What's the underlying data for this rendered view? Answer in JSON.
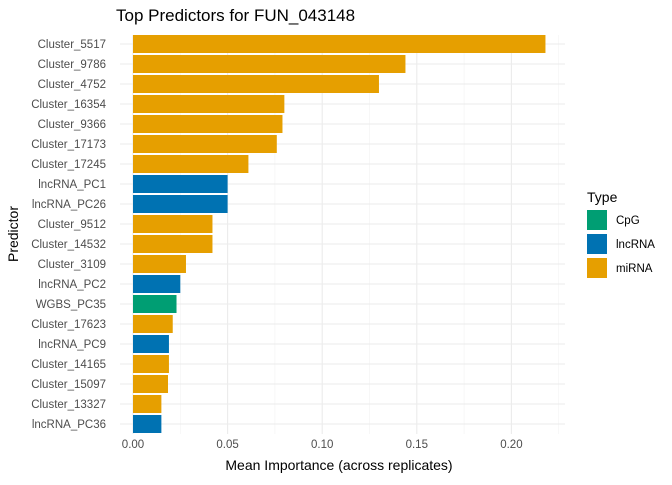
{
  "chart_data": {
    "type": "bar",
    "orientation": "horizontal",
    "title": "Top Predictors for FUN_043148",
    "xlabel": "Mean Importance (across replicates)",
    "ylabel": "Predictor",
    "xlim": [
      0,
      0.225
    ],
    "xticks": [
      "0.00",
      "0.05",
      "0.10",
      "0.15",
      "0.20"
    ],
    "xtick_values": [
      0,
      0.05,
      0.1,
      0.15,
      0.2
    ],
    "grid": true,
    "legend": {
      "title": "Type",
      "placement": "right",
      "entries": [
        {
          "name": "CpG",
          "color": "#009E73"
        },
        {
          "name": "lncRNA",
          "color": "#0072B2"
        },
        {
          "name": "miRNA",
          "color": "#E69F00"
        }
      ]
    },
    "bars": [
      {
        "label": "Cluster_5517",
        "value": 0.218,
        "type": "miRNA"
      },
      {
        "label": "Cluster_9786",
        "value": 0.144,
        "type": "miRNA"
      },
      {
        "label": "Cluster_4752",
        "value": 0.13,
        "type": "miRNA"
      },
      {
        "label": "Cluster_16354",
        "value": 0.08,
        "type": "miRNA"
      },
      {
        "label": "Cluster_9366",
        "value": 0.079,
        "type": "miRNA"
      },
      {
        "label": "Cluster_17173",
        "value": 0.076,
        "type": "miRNA"
      },
      {
        "label": "Cluster_17245",
        "value": 0.061,
        "type": "miRNA"
      },
      {
        "label": "lncRNA_PC1",
        "value": 0.05,
        "type": "lncRNA"
      },
      {
        "label": "lncRNA_PC26",
        "value": 0.05,
        "type": "lncRNA"
      },
      {
        "label": "Cluster_9512",
        "value": 0.042,
        "type": "miRNA"
      },
      {
        "label": "Cluster_14532",
        "value": 0.042,
        "type": "miRNA"
      },
      {
        "label": "Cluster_3109",
        "value": 0.028,
        "type": "miRNA"
      },
      {
        "label": "lncRNA_PC2",
        "value": 0.025,
        "type": "lncRNA"
      },
      {
        "label": "WGBS_PC35",
        "value": 0.023,
        "type": "CpG"
      },
      {
        "label": "Cluster_17623",
        "value": 0.021,
        "type": "miRNA"
      },
      {
        "label": "lncRNA_PC9",
        "value": 0.019,
        "type": "lncRNA"
      },
      {
        "label": "Cluster_14165",
        "value": 0.019,
        "type": "miRNA"
      },
      {
        "label": "Cluster_15097",
        "value": 0.0185,
        "type": "miRNA"
      },
      {
        "label": "Cluster_13327",
        "value": 0.015,
        "type": "miRNA"
      },
      {
        "label": "lncRNA_PC36",
        "value": 0.015,
        "type": "lncRNA"
      }
    ]
  }
}
